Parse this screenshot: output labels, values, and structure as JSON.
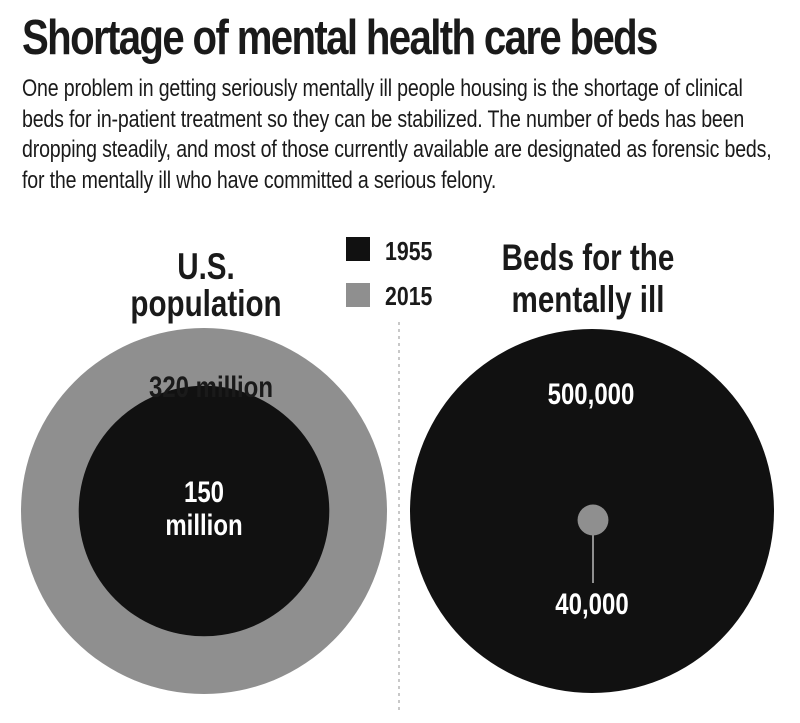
{
  "title": "Shortage of mental health care beds",
  "description": "One problem in getting seriously mentally ill people housing is the shortage of clinical beds for in-patient treatment so they can be stabilized. The number of beds has been dropping steadily, and most of those currently available are designated as forensic beds, for the mentally ill who have committed a serious felony.",
  "legend": [
    {
      "label": "1955",
      "color": "#111111"
    },
    {
      "label": "2015",
      "color": "#8f8f8f"
    }
  ],
  "colors": {
    "series_1955": "#111111",
    "series_2015": "#8f8f8f",
    "divider": "#b5b5b5",
    "text_dark": "#1a1a1a",
    "text_light": "#ffffff"
  },
  "chart_data": [
    {
      "type": "proportional-area",
      "title_lines": [
        "U.S.",
        "population"
      ],
      "series": [
        {
          "name": "2015",
          "value": 320000000,
          "label": "320 million"
        },
        {
          "name": "1955",
          "value": 150000000,
          "label_lines": [
            "150",
            "million"
          ]
        }
      ]
    },
    {
      "type": "proportional-area",
      "title_lines": [
        "Beds for the",
        "mentally ill"
      ],
      "series": [
        {
          "name": "1955",
          "value": 500000,
          "label": "500,000"
        },
        {
          "name": "2015",
          "value": 40000,
          "label": "40,000"
        }
      ]
    }
  ]
}
